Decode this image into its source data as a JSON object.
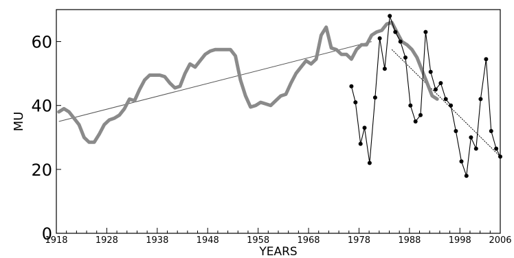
{
  "chart_data": {
    "type": "line",
    "title": "",
    "xlabel": "YEARS",
    "ylabel": "MU",
    "xlim": [
      1918,
      2006
    ],
    "ylim": [
      0,
      70
    ],
    "x_ticks": [
      1918,
      1928,
      1938,
      1948,
      1958,
      1968,
      1978,
      1988,
      1998,
      2006
    ],
    "y_ticks": [
      0,
      20,
      40,
      60
    ],
    "grid": false,
    "legend": "none",
    "colors": {
      "smoothed": "#8a8a8a",
      "annual": "#000000",
      "trend_long": "#555555",
      "trend_recent": "#000000"
    },
    "series": [
      {
        "style": "thick-gray",
        "x": [
          1918.5,
          1919.5,
          1920.5,
          1921.5,
          1922.5,
          1923.5,
          1924.5,
          1925.5,
          1926.5,
          1927.5,
          1928.5,
          1929.5,
          1930.5,
          1931.5,
          1932.5,
          1933.5,
          1934.5,
          1935.5,
          1936.5,
          1937.5,
          1938.5,
          1939.5,
          1940.5,
          1941.5,
          1942.5,
          1943.5,
          1944.5,
          1945.5,
          1946.5,
          1947.5,
          1948.5,
          1949.5,
          1950.5,
          1951.5,
          1952.5,
          1953.5,
          1954.5,
          1955.5,
          1956.5,
          1957.5,
          1958.5,
          1959.5,
          1960.5,
          1961.5,
          1962.5,
          1963.5,
          1964.5,
          1965.5,
          1966.5,
          1967.5,
          1968.5,
          1969.5,
          1970.5,
          1971.5,
          1972.5,
          1973.5,
          1974.5,
          1975.5,
          1976.5,
          1977.5,
          1978.5,
          1979.5,
          1980.5,
          1981.5,
          1982.5,
          1983.5,
          1984.5,
          1985.5,
          1986.5,
          1987.5,
          1988.5,
          1989.5,
          1990.5,
          1991.5,
          1992.5,
          1993.5
        ],
        "y": [
          38,
          39,
          38,
          36,
          34,
          30,
          28.5,
          28.5,
          31,
          34,
          35.5,
          36,
          37,
          39,
          42,
          41.5,
          45,
          48,
          49.5,
          49.5,
          49.5,
          49,
          47,
          45.5,
          46,
          50,
          53,
          52,
          54,
          56,
          57,
          57.5,
          57.5,
          57.5,
          57.5,
          55.5,
          48,
          43,
          39.5,
          40,
          41,
          40.5,
          40,
          41.5,
          43,
          43.5,
          47,
          50,
          52,
          54,
          53,
          54.5,
          62,
          64.5,
          58,
          57.5,
          56,
          56,
          54.5,
          57.5,
          59,
          59,
          62,
          63,
          63.5,
          65.5,
          66,
          63,
          60,
          59,
          57.5,
          55,
          51,
          47,
          43,
          42
        ]
      },
      {
        "style": "markers",
        "x": [
          1976.5,
          1977.3,
          1978.3,
          1979.1,
          1980.1,
          1981.2,
          1982.1,
          1983.1,
          1984.1,
          1985.2,
          1986.2,
          1987.2,
          1988.2,
          1989.2,
          1990.2,
          1991.2,
          1992.2,
          1993.2,
          1994.2,
          1995.2,
          1996.2,
          1997.2,
          1998.3,
          1999.3,
          2000.2,
          2001.2,
          2002.1,
          2003.2,
          2004.2,
          2005.2,
          2006
        ],
        "y": [
          46,
          41,
          28,
          33,
          22,
          42.5,
          61,
          51.5,
          68,
          63,
          60,
          55,
          40,
          35,
          37,
          63,
          50.5,
          45,
          47,
          42,
          40,
          32,
          22.5,
          18,
          30,
          26.5,
          42,
          54.5,
          32,
          26.5,
          24
        ]
      },
      {
        "style": "thin-line",
        "x": [
          1918.5,
          1980.5
        ],
        "y": [
          35,
          60
        ]
      },
      {
        "style": "thin-line",
        "x": [
          1984.5,
          2006
        ],
        "y": [
          57.5,
          24
        ]
      }
    ]
  }
}
